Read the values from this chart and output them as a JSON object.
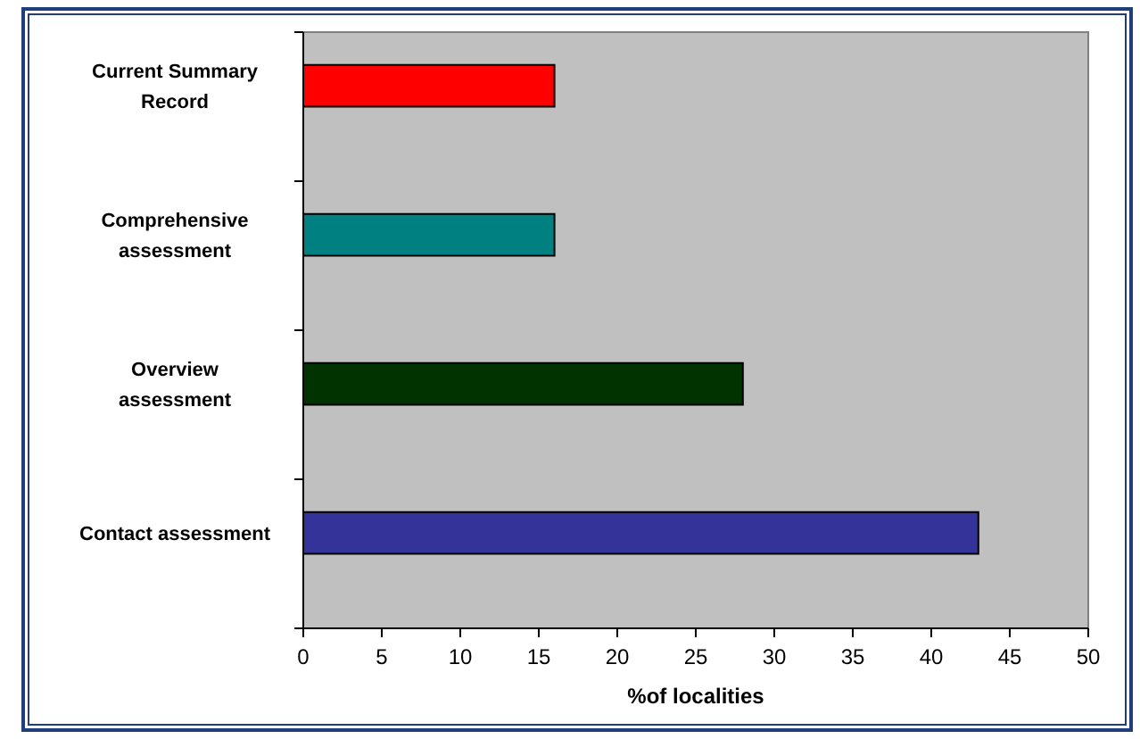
{
  "chart_data": {
    "type": "bar",
    "orientation": "horizontal",
    "xlabel": "%of localities",
    "categories": [
      "Current Summary\nRecord",
      "Comprehensive\nassessment",
      "Overview\nassessment",
      "Contact assessment"
    ],
    "values": [
      16,
      16,
      28,
      43
    ],
    "colors": [
      "#ff0000",
      "#008080",
      "#003300",
      "#333399"
    ],
    "xlim": [
      0,
      50
    ],
    "xticks": [
      0,
      5,
      10,
      15,
      20,
      25,
      30,
      35,
      40,
      45,
      50
    ],
    "grid": false
  }
}
